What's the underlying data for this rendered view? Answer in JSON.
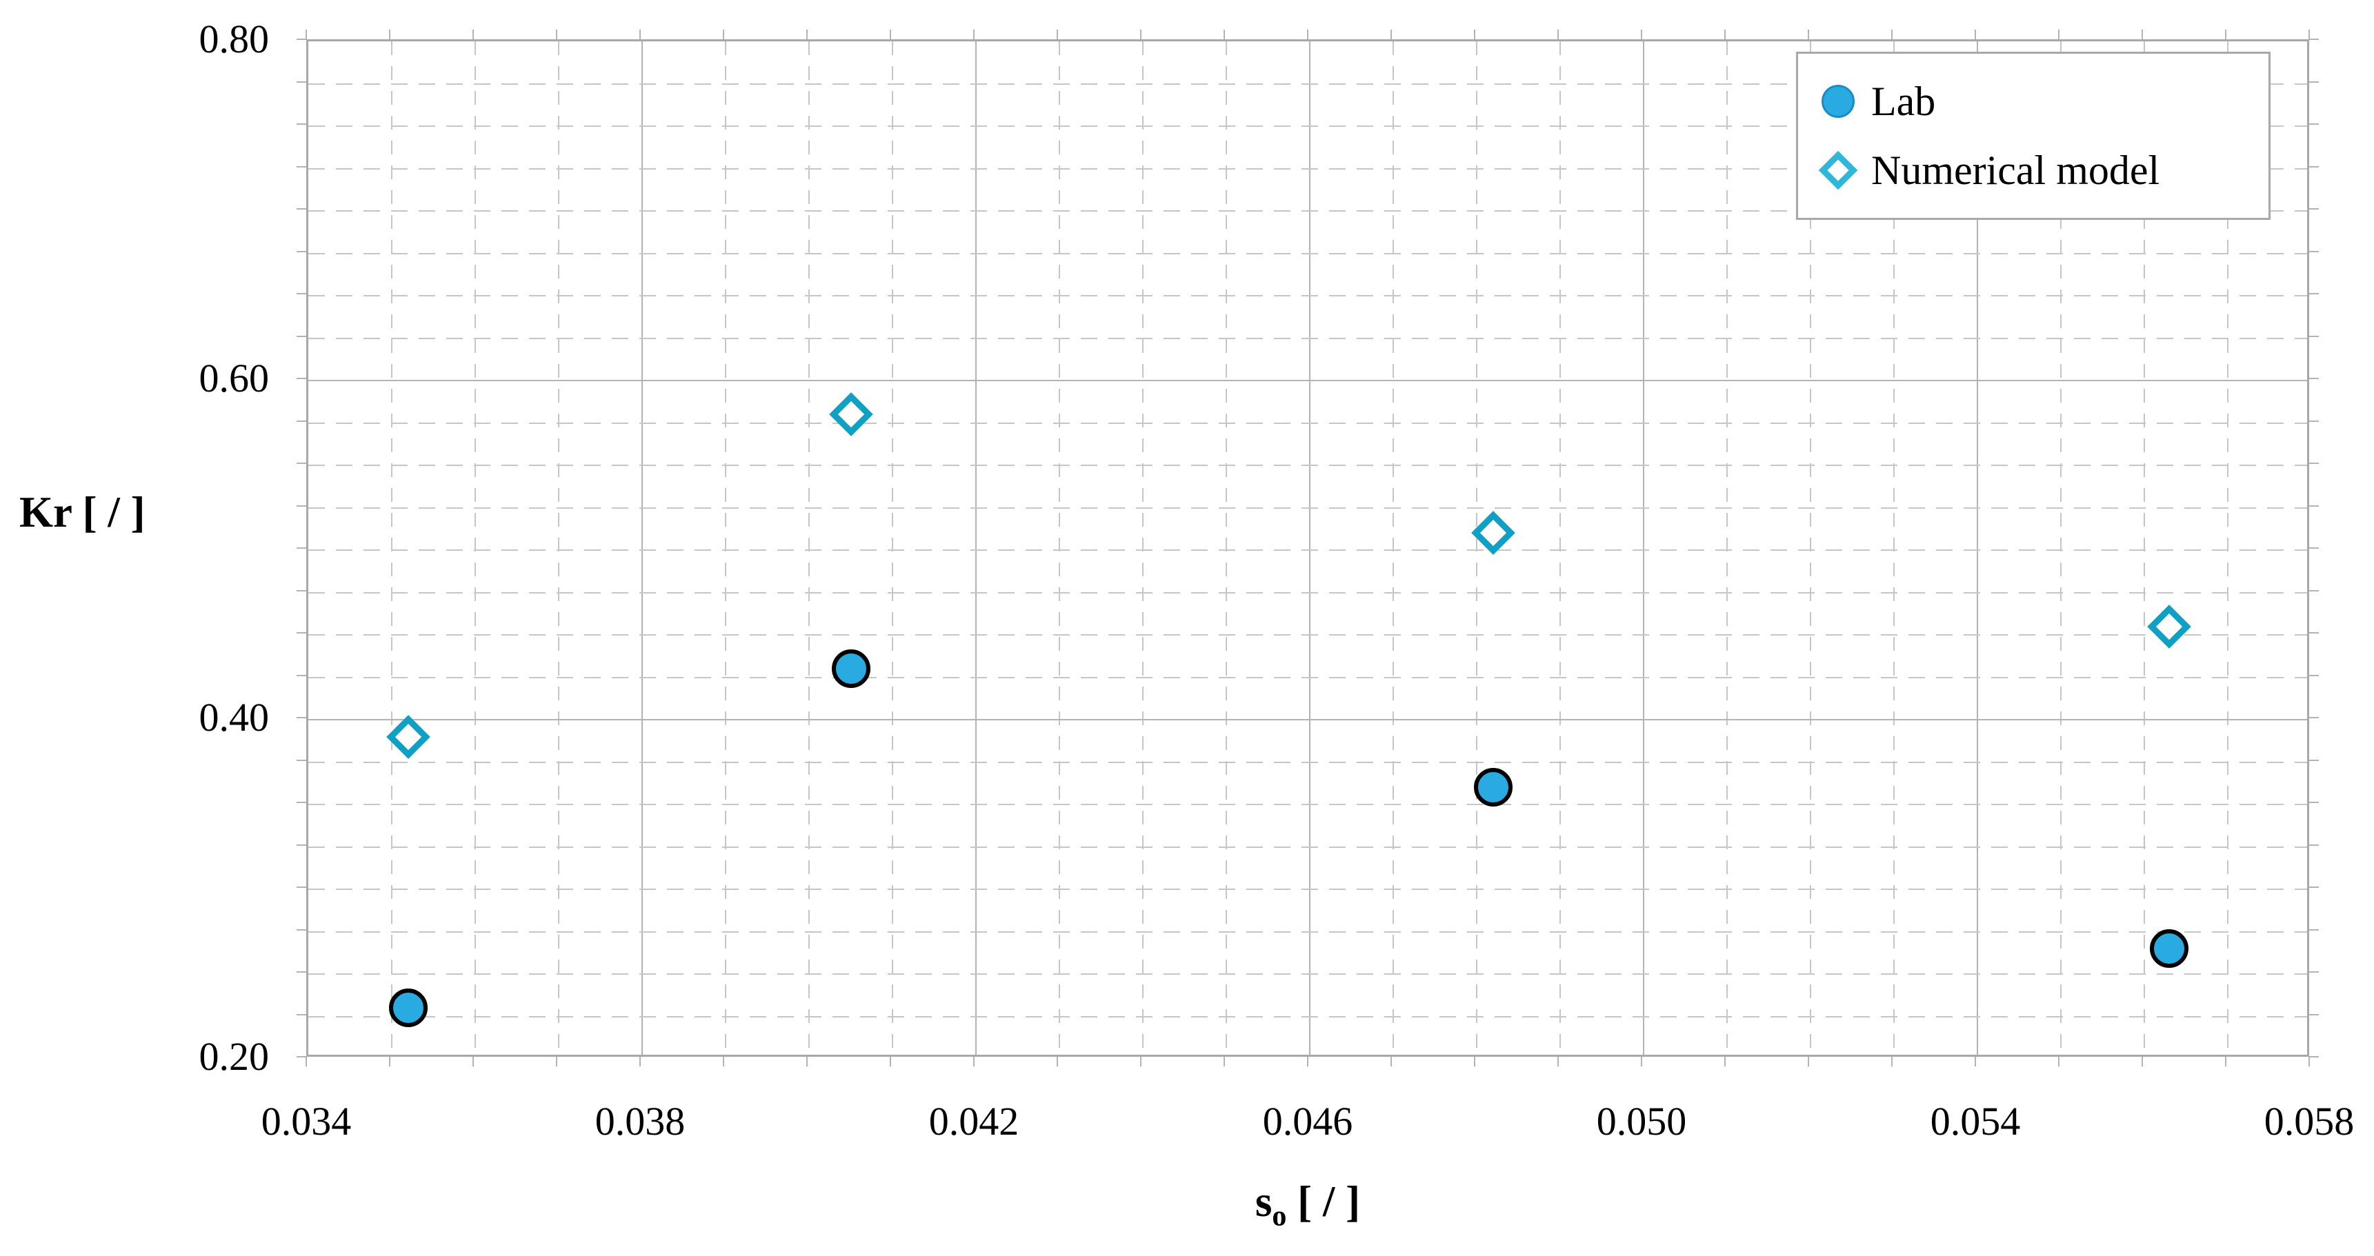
{
  "colors": {
    "background": "#ffffff",
    "lab_fill": "#29ABE2",
    "lab_edge": "#000000",
    "model_stroke": "#0FA0C3",
    "legend_model_stroke": "#2FB7DB",
    "grid_minor": "#c6c6c6",
    "grid_major": "#b3b3b3",
    "plot_border": "#a8a8a8",
    "text": "#000000"
  },
  "axis_titles": {
    "y": "Kr [ / ]",
    "x_prefix": "s",
    "x_subscript": "o",
    "x_suffix": " [ / ]"
  },
  "chart_data": {
    "type": "scatter",
    "title": "",
    "xlabel": "s_o [ / ]",
    "ylabel": "Kr [ / ]",
    "xlim": [
      0.034,
      0.058
    ],
    "ylim": [
      0.2,
      0.8
    ],
    "x_minor_step": 0.001,
    "y_minor_step": 0.025,
    "x_major_step": 0.004,
    "y_major_step": 0.2,
    "grid": "minor dashed, major solid",
    "legend_position": "top-right",
    "x_tick_labels": [
      "0.034",
      "0.038",
      "0.042",
      "0.046",
      "0.050",
      "0.054",
      "0.058"
    ],
    "x_ticks": [
      0.034,
      0.038,
      0.042,
      0.046,
      0.05,
      0.054,
      0.058
    ],
    "y_tick_labels": [
      "0.80",
      "0.60",
      "0.40",
      "0.20"
    ],
    "y_ticks": [
      0.8,
      0.6,
      0.4,
      0.2
    ],
    "series": [
      {
        "name": "Lab",
        "marker": "filled-circle",
        "color": "#29ABE2",
        "edge_color": "#000000",
        "points": [
          {
            "x": 0.0352,
            "y": 0.23
          },
          {
            "x": 0.0405,
            "y": 0.43
          },
          {
            "x": 0.0482,
            "y": 0.36
          },
          {
            "x": 0.0563,
            "y": 0.265
          }
        ]
      },
      {
        "name": "Numerical model",
        "marker": "open-diamond",
        "color": "#0FA0C3",
        "points": [
          {
            "x": 0.0352,
            "y": 0.39
          },
          {
            "x": 0.0405,
            "y": 0.58
          },
          {
            "x": 0.0482,
            "y": 0.51
          },
          {
            "x": 0.0563,
            "y": 0.455
          }
        ]
      }
    ]
  }
}
